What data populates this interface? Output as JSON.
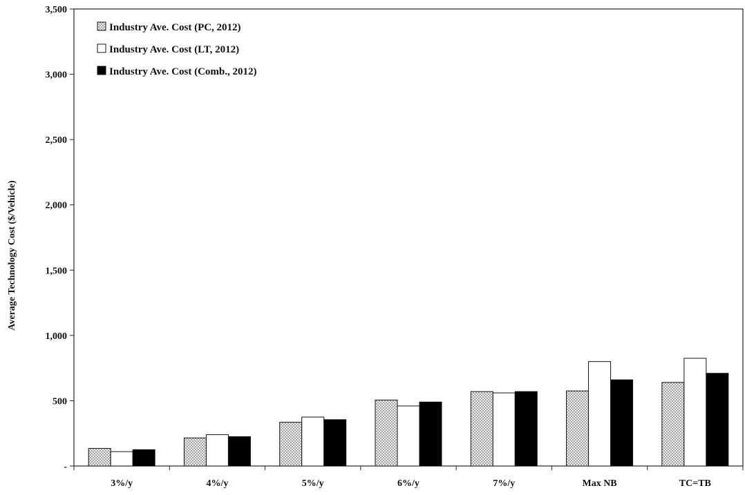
{
  "chart_data": {
    "type": "bar",
    "title": "",
    "xlabel": "",
    "ylabel": "Average Technology Cost ($/Vehicle)",
    "ylim": [
      0,
      3500
    ],
    "yticks": [
      0,
      500,
      1000,
      1500,
      2000,
      2500,
      3000,
      3500
    ],
    "ytick_labels": [
      "-",
      "500",
      "1,000",
      "1,500",
      "2,000",
      "2,500",
      "3,000",
      "3,500"
    ],
    "categories": [
      "3%/y",
      "4%/y",
      "5%/y",
      "6%/y",
      "7%/y",
      "Max NB",
      "TC=TB"
    ],
    "legend_position": "top-left",
    "grid": false,
    "series": [
      {
        "name": "Industry Ave. Cost  (PC, 2012)",
        "fill": "dotted",
        "color": "#d9d9d9",
        "values": [
          135,
          215,
          335,
          505,
          570,
          575,
          640
        ]
      },
      {
        "name": "Industry Ave. Cost  (LT, 2012)",
        "fill": "white",
        "color": "#ffffff",
        "values": [
          110,
          240,
          375,
          460,
          560,
          800,
          825
        ]
      },
      {
        "name": "Industry Ave. Cost  (Comb., 2012)",
        "fill": "black",
        "color": "#000000",
        "values": [
          125,
          225,
          355,
          490,
          570,
          660,
          710
        ]
      }
    ]
  }
}
